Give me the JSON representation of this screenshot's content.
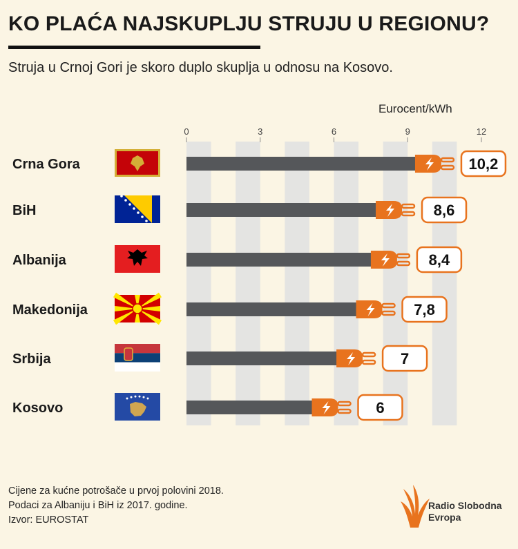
{
  "header": {
    "title": "KO PLAĆA NAJSKUPLJU STRUJU U REGIONU?",
    "subtitle": "Struja u Crnoj Gori je skoro duplo skuplja u odnosu na Kosovo."
  },
  "chart_data": {
    "type": "bar",
    "orientation": "horizontal",
    "unit_label": "Eurocent/kWh",
    "categories": [
      "Crna Gora",
      "BiH",
      "Albanija",
      "Makedonija",
      "Srbija",
      "Kosovo"
    ],
    "values": [
      10.2,
      8.6,
      8.4,
      7.8,
      7,
      6
    ],
    "value_labels": [
      "10,2",
      "8,6",
      "8,4",
      "7,8",
      "7",
      "6"
    ],
    "x_ticks": [
      "0",
      "3",
      "6",
      "9",
      "12"
    ],
    "xlim": [
      0,
      12
    ],
    "flags": [
      "montenegro",
      "bosnia",
      "albania",
      "macedonia",
      "serbia",
      "kosovo"
    ],
    "colors": {
      "bar": "#55575a",
      "plug": "#e8731e",
      "stripe": "#e4e4e2"
    }
  },
  "footer": {
    "notes": [
      "Cijene za kućne potrošače u prvoj polovini 2018.",
      "Podaci za Albaniju i BiH iz 2017. godine.",
      "Izvor: EUROSTAT"
    ],
    "logo_line1": "Radio Slobodna",
    "logo_line2": "Evropa",
    "logo_icon": "rfe-flame-icon"
  }
}
